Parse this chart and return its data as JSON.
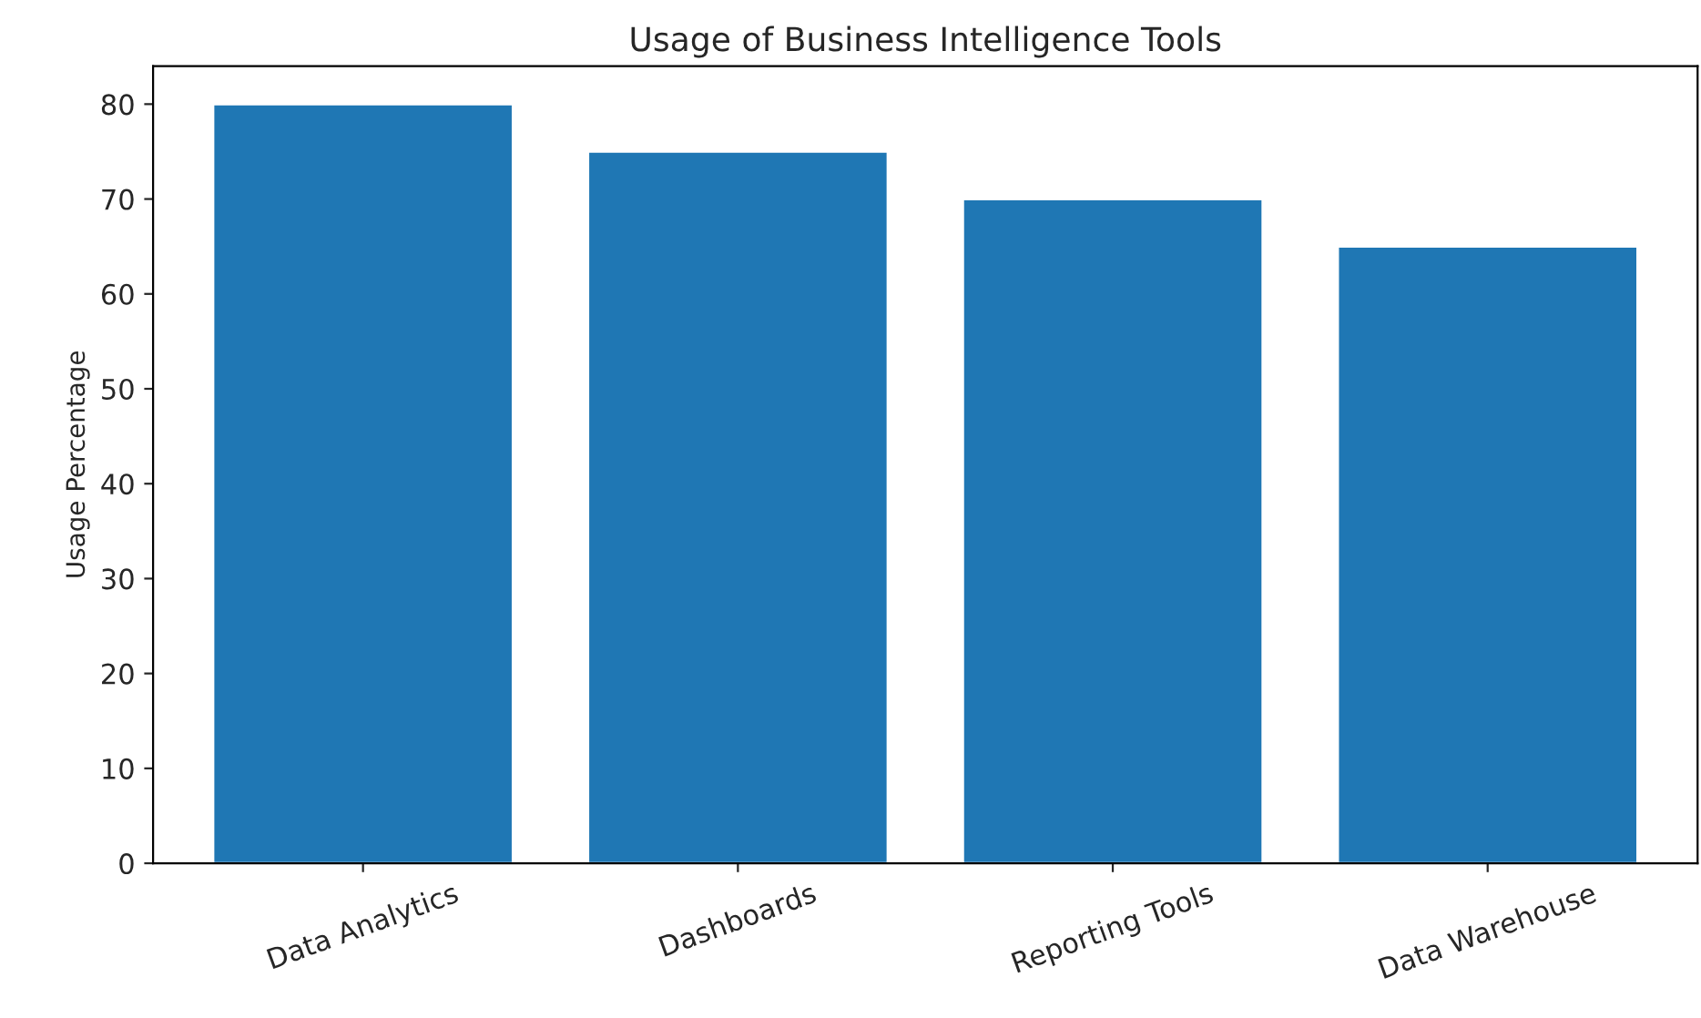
{
  "chart_data": {
    "type": "bar",
    "title": "Usage of Business Intelligence Tools",
    "ylabel": "Usage Percentage",
    "categories": [
      "Data Analytics",
      "Dashboards",
      "Reporting Tools",
      "Data Warehouse"
    ],
    "values": [
      80,
      75,
      70,
      65
    ],
    "color": "#1f77b4",
    "ylim": [
      0,
      84
    ],
    "yticks": [
      0,
      10,
      20,
      30,
      40,
      50,
      60,
      70,
      80
    ],
    "grid": false
  }
}
